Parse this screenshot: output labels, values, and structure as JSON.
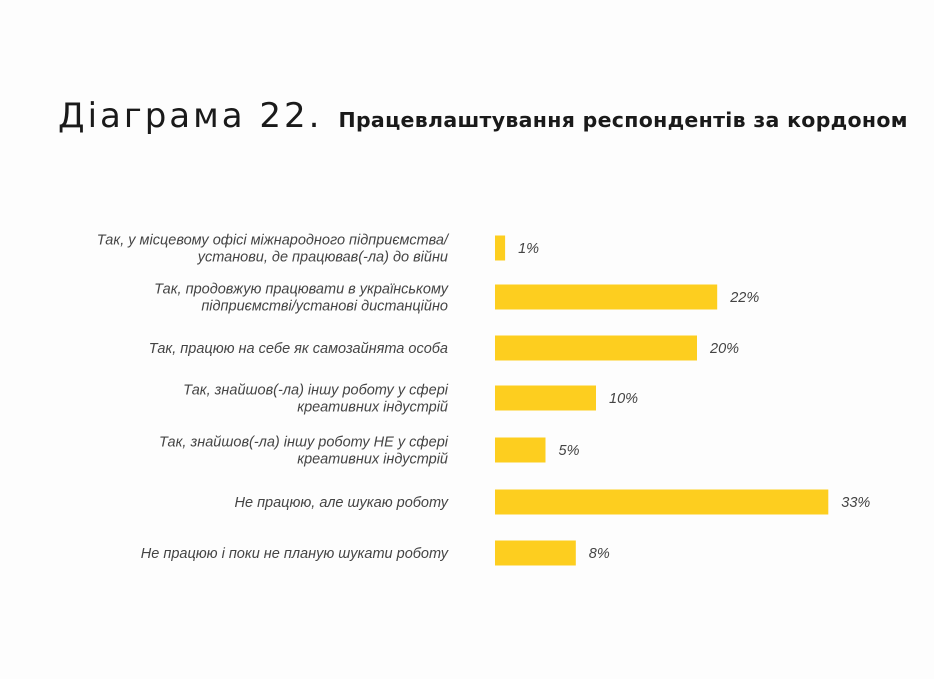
{
  "title": {
    "prefix": "Діаграма 22.",
    "main": "Працевлаштування респондентів  за кордоном"
  },
  "chart_data": {
    "type": "bar",
    "orientation": "horizontal",
    "categories": [
      [
        "Так, у місцевому офісі міжнародного підприємства/",
        "установи, де працював(-ла) до війни"
      ],
      [
        "Так, продовжую працювати в українському",
        "підприємстві/установі дистанційно"
      ],
      [
        "Так, працюю на себе як самозайнята особа"
      ],
      [
        "Так, знайшов(-ла) іншу роботу у сфері",
        "креативних індустрій"
      ],
      [
        "Так, знайшов(-ла) іншу роботу НЕ у сфері",
        "креативних індустрій"
      ],
      [
        "Не працюю, але шукаю роботу"
      ],
      [
        "Не працюю і поки не планую шукати роботу"
      ]
    ],
    "values": [
      1,
      22,
      20,
      10,
      5,
      33,
      8
    ],
    "value_labels": [
      "1%",
      "22%",
      "20%",
      "10%",
      "5%",
      "33%",
      "8%"
    ],
    "bar_color": "#FDCE1F",
    "grid": false,
    "legend": "none"
  }
}
